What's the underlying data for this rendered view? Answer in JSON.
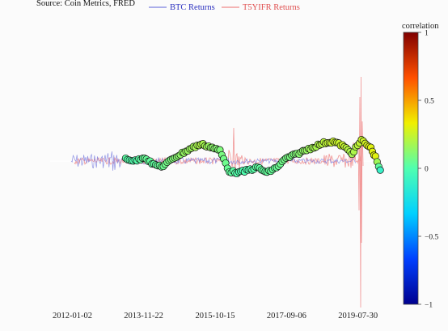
{
  "chart_data": {
    "type": "line",
    "source": "Source: Coin Metrics, FRED",
    "title": "",
    "xlabel": "",
    "ylabel": "",
    "x_ticks": [
      "2012-01-02",
      "2013-11-22",
      "2015-10-15",
      "2017-09-06",
      "2019-07-30"
    ],
    "x_range": [
      "2011-06-01",
      "2020-05-01"
    ],
    "y_range": [
      -1.1,
      1.0
    ],
    "grid": false,
    "legend_position": "top-center",
    "series": [
      {
        "name": "BTC Returns",
        "color": "#7b7fe0",
        "kind": "line"
      },
      {
        "name": "T5YIFR Returns",
        "color": "#f08a8a",
        "kind": "line"
      },
      {
        "name": "",
        "kind": "scatter",
        "points": [
          {
            "x": "2013-06-01",
            "y": 0.02,
            "c": 0.02
          },
          {
            "x": "2013-09-01",
            "y": 0.0,
            "c": 0.0
          },
          {
            "x": "2013-12-01",
            "y": 0.03,
            "c": 0.05
          },
          {
            "x": "2014-03-01",
            "y": -0.03,
            "c": 0.03
          },
          {
            "x": "2014-06-01",
            "y": -0.04,
            "c": 0.06
          },
          {
            "x": "2014-09-01",
            "y": 0.02,
            "c": 0.1
          },
          {
            "x": "2014-12-01",
            "y": 0.06,
            "c": 0.14
          },
          {
            "x": "2015-03-01",
            "y": 0.1,
            "c": 0.16
          },
          {
            "x": "2015-06-01",
            "y": 0.13,
            "c": 0.2
          },
          {
            "x": "2015-09-01",
            "y": 0.11,
            "c": 0.14
          },
          {
            "x": "2015-12-01",
            "y": 0.08,
            "c": 0.1
          },
          {
            "x": "2016-03-01",
            "y": -0.08,
            "c": 0.04
          },
          {
            "x": "2016-06-01",
            "y": -0.09,
            "c": 0.0
          },
          {
            "x": "2016-09-01",
            "y": -0.07,
            "c": 0.0
          },
          {
            "x": "2016-12-01",
            "y": -0.05,
            "c": 0.03
          },
          {
            "x": "2017-03-01",
            "y": -0.09,
            "c": 0.04
          },
          {
            "x": "2017-06-01",
            "y": -0.05,
            "c": 0.05
          },
          {
            "x": "2017-09-01",
            "y": 0.02,
            "c": 0.08
          },
          {
            "x": "2017-12-01",
            "y": 0.05,
            "c": 0.1
          },
          {
            "x": "2018-03-01",
            "y": 0.08,
            "c": 0.14
          },
          {
            "x": "2018-06-01",
            "y": 0.11,
            "c": 0.18
          },
          {
            "x": "2018-09-01",
            "y": 0.14,
            "c": 0.22
          },
          {
            "x": "2018-12-01",
            "y": 0.15,
            "c": 0.25
          },
          {
            "x": "2019-03-01",
            "y": 0.12,
            "c": 0.25
          },
          {
            "x": "2019-06-01",
            "y": 0.06,
            "c": 0.18
          },
          {
            "x": "2019-09-01",
            "y": 0.16,
            "c": 0.25
          },
          {
            "x": "2019-12-01",
            "y": 0.1,
            "c": 0.3
          },
          {
            "x": "2020-01-15",
            "y": 0.03,
            "c": 0.3
          },
          {
            "x": "2020-03-01",
            "y": -0.07,
            "c": -0.1
          }
        ]
      }
    ],
    "colorbar": {
      "title": "correlation",
      "range": [
        -1,
        1
      ],
      "ticks": [
        "1",
        "0.5",
        "0",
        "−0.5",
        "−1"
      ],
      "colorscale": [
        "#00008f",
        "#0040ff",
        "#00d0ff",
        "#50ffb0",
        "#f0f000",
        "#ff5000",
        "#800000"
      ]
    }
  }
}
